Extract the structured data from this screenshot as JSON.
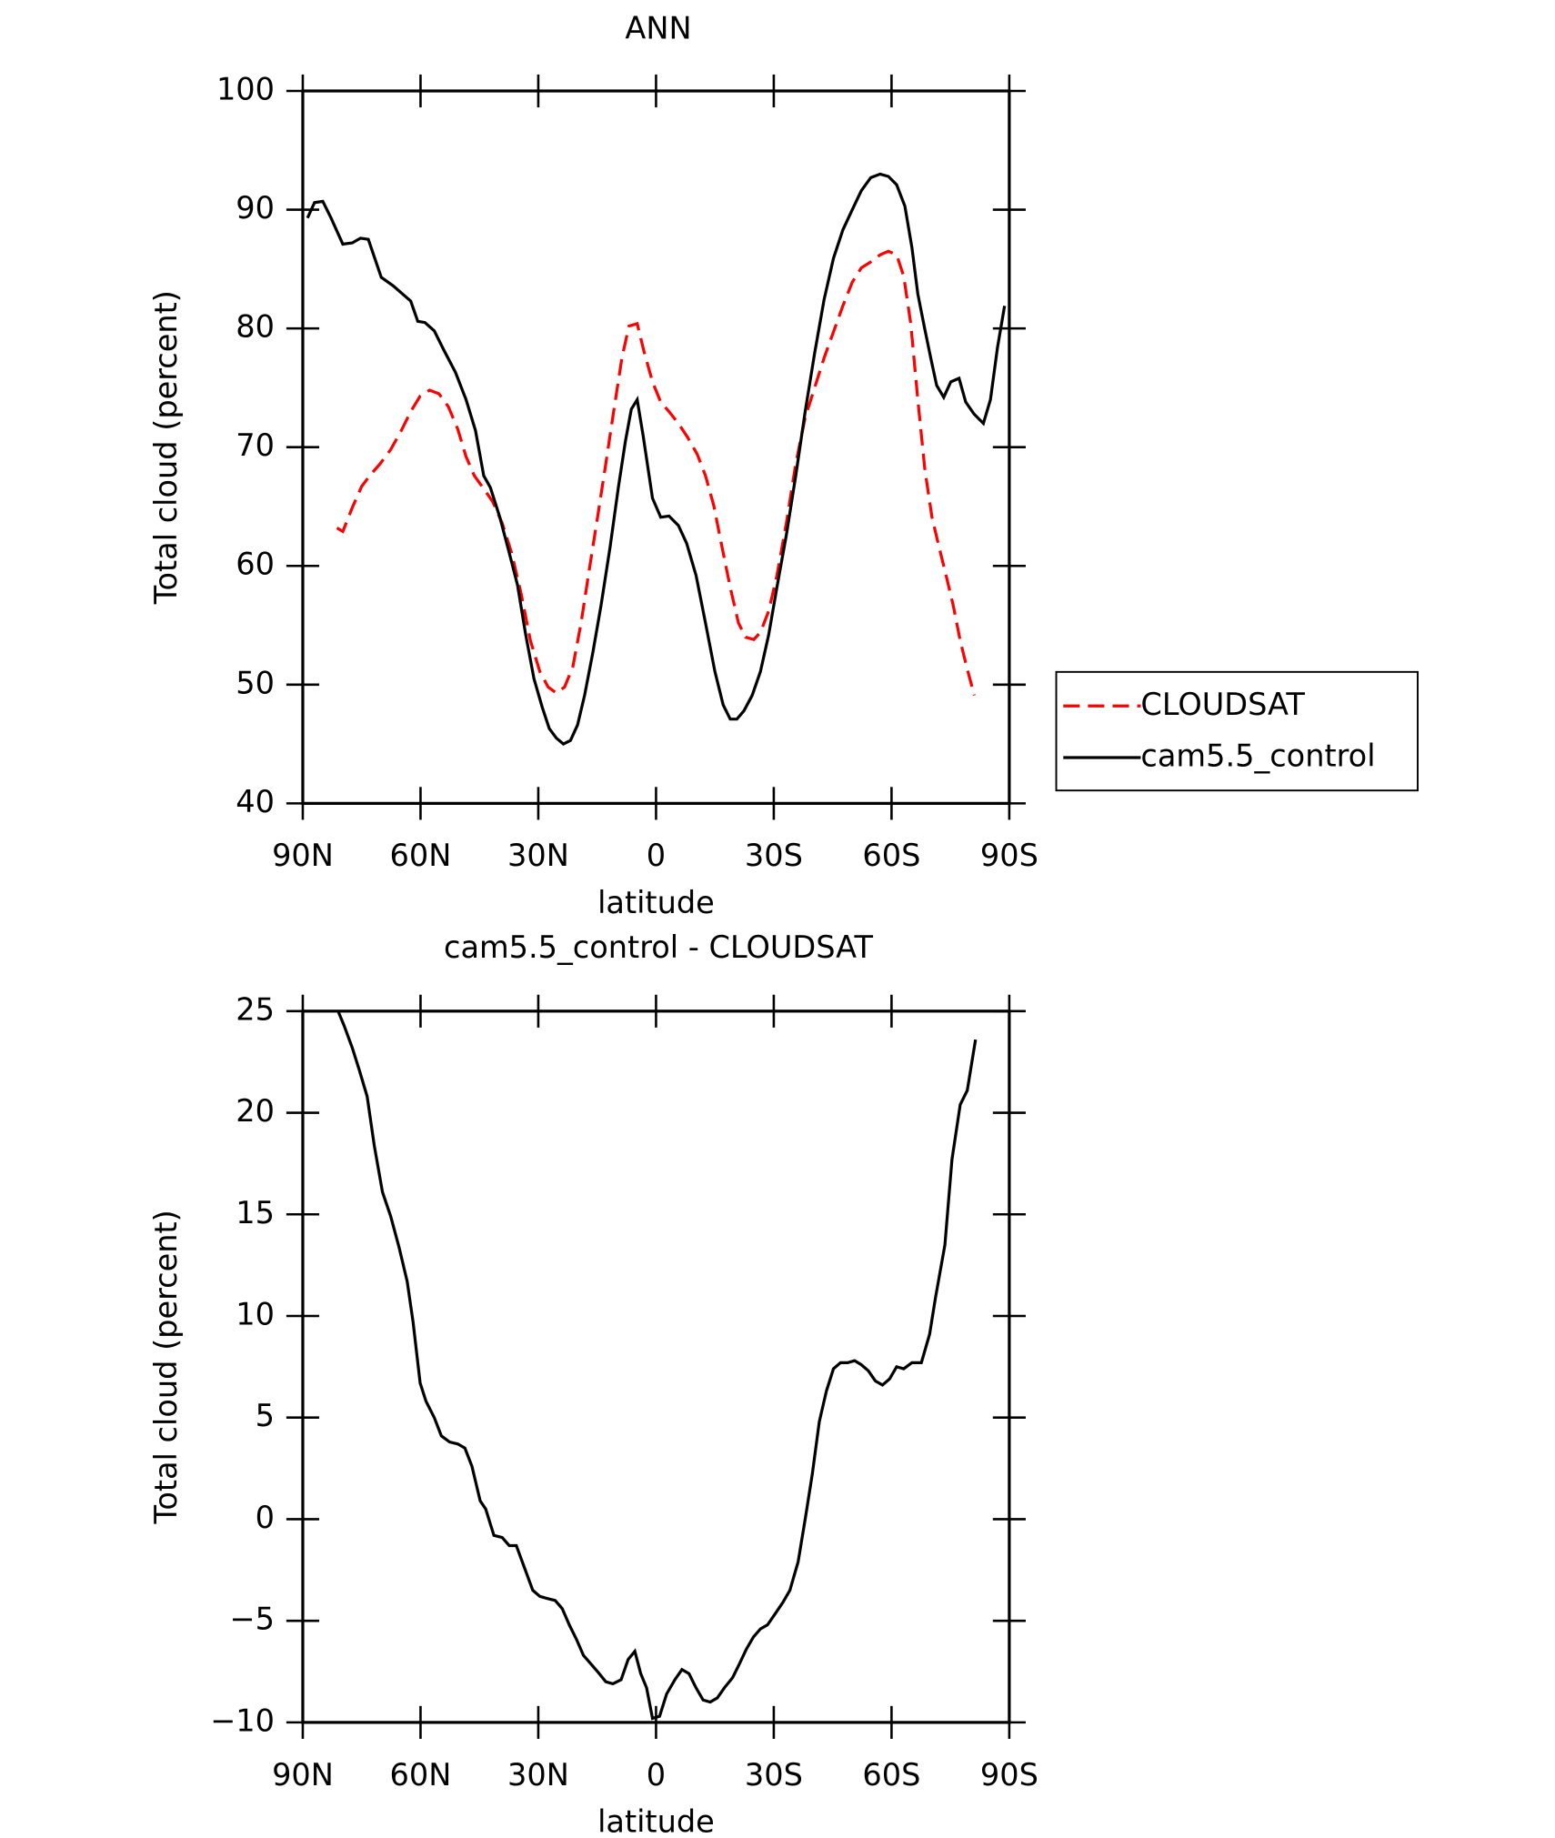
{
  "chart_data": [
    {
      "type": "line",
      "title": "ANN",
      "x_label": "latitude",
      "y_label": "Total cloud (percent)",
      "xlim": [
        90,
        -90
      ],
      "ylim": [
        40,
        100
      ],
      "xticks": [
        {
          "value": 90,
          "label": "90N"
        },
        {
          "value": 60,
          "label": "60N"
        },
        {
          "value": 30,
          "label": "30N"
        },
        0,
        {
          "value": -30,
          "label": "30S"
        },
        {
          "value": -60,
          "label": "60S"
        },
        {
          "value": -90,
          "label": "90S"
        }
      ],
      "yticks": [
        40,
        50,
        60,
        70,
        80,
        90,
        100
      ],
      "legend": "outside right",
      "series": [
        {
          "name": "CLOUDSAT",
          "color": "#ff0000",
          "linestyle": "dashed",
          "x": [
            81.3,
            79.8,
            77.4,
            75.0,
            72.7,
            70.3,
            67.6,
            64.9,
            62.5,
            60.1,
            57.7,
            55.3,
            52.9,
            50.5,
            48.4,
            46.3,
            43.9,
            41.6,
            39.2,
            36.8,
            34.4,
            32.0,
            29.6,
            27.5,
            25.4,
            23.3,
            21.2,
            19.1,
            17.0,
            14.9,
            12.8,
            10.8,
            8.7,
            6.9,
            4.8,
            3.1,
            0.9,
            -1.2,
            -3.3,
            -5.7,
            -8.1,
            -10.5,
            -12.6,
            -14.7,
            -16.8,
            -18.9,
            -21.0,
            -22.8,
            -24.9,
            -26.6,
            -28.7,
            -30.8,
            -33.2,
            -35.6,
            -38.0,
            -40.4,
            -42.8,
            -45.2,
            -47.6,
            -50.0,
            -52.3,
            -54.7,
            -57.1,
            -59.2,
            -61.3,
            -63.1,
            -64.9,
            -66.7,
            -68.5,
            -70.3,
            -72.1,
            -73.9,
            -75.7,
            -77.5,
            -79.3,
            -81.1
          ],
          "values": [
            63.2,
            62.9,
            64.9,
            66.7,
            67.7,
            68.6,
            69.8,
            71.4,
            73.0,
            74.3,
            74.8,
            74.5,
            73.4,
            71.5,
            69.2,
            67.6,
            66.5,
            65.4,
            63.6,
            61.1,
            57.7,
            53.7,
            51.1,
            49.8,
            49.3,
            49.8,
            51.5,
            55.2,
            59.7,
            64.1,
            68.6,
            73.0,
            77.5,
            80.2,
            80.4,
            78.1,
            75.5,
            73.8,
            73.0,
            72.0,
            70.8,
            69.4,
            67.6,
            65.1,
            61.6,
            58.2,
            55.2,
            54.0,
            53.8,
            54.4,
            56.2,
            59.2,
            63.6,
            68.6,
            72.5,
            75.0,
            77.5,
            79.7,
            81.9,
            83.9,
            85.1,
            85.6,
            86.2,
            86.5,
            86.2,
            84.4,
            80.4,
            74.0,
            68.1,
            64.1,
            61.6,
            59.2,
            56.7,
            53.7,
            51.3,
            49.1
          ]
        },
        {
          "name": "cam5.5_control",
          "color": "#000000",
          "linestyle": "solid",
          "x": [
            88.8,
            87.0,
            84.9,
            82.8,
            79.8,
            77.4,
            75.3,
            73.3,
            70.0,
            67.0,
            62.5,
            60.7,
            58.9,
            56.5,
            54.1,
            51.1,
            48.4,
            46.0,
            43.9,
            42.2,
            39.8,
            37.4,
            35.3,
            33.2,
            31.1,
            29.0,
            27.2,
            25.4,
            23.6,
            21.8,
            20.0,
            18.2,
            16.1,
            14.0,
            11.7,
            9.6,
            7.8,
            6.3,
            4.8,
            3.3,
            0.9,
            -1.2,
            -3.3,
            -5.7,
            -7.8,
            -10.2,
            -12.6,
            -15.0,
            -17.1,
            -18.9,
            -20.6,
            -22.4,
            -24.5,
            -26.6,
            -28.7,
            -30.8,
            -33.2,
            -35.6,
            -38.0,
            -40.4,
            -42.8,
            -45.2,
            -47.6,
            -50.0,
            -52.3,
            -54.7,
            -57.1,
            -59.2,
            -61.3,
            -63.4,
            -65.2,
            -66.7,
            -68.5,
            -70.0,
            -71.5,
            -73.3,
            -75.1,
            -77.2,
            -78.9,
            -81.0,
            -83.4,
            -85.2,
            -87.0,
            -88.8
          ],
          "values": [
            89.3,
            90.6,
            90.7,
            89.3,
            87.1,
            87.2,
            87.6,
            87.5,
            84.3,
            83.6,
            82.3,
            80.6,
            80.5,
            79.8,
            78.2,
            76.3,
            74.0,
            71.4,
            67.6,
            66.6,
            64.1,
            61.1,
            58.4,
            54.2,
            50.5,
            48.1,
            46.3,
            45.5,
            45.0,
            45.3,
            46.6,
            49.1,
            52.7,
            56.7,
            61.6,
            66.6,
            70.5,
            73.2,
            74.0,
            71.0,
            65.7,
            64.1,
            64.2,
            63.4,
            61.9,
            59.2,
            55.2,
            51.1,
            48.3,
            47.1,
            47.1,
            47.8,
            49.1,
            51.1,
            54.2,
            58.2,
            62.6,
            67.6,
            73.0,
            77.9,
            82.4,
            85.9,
            88.3,
            90.0,
            91.6,
            92.7,
            93.0,
            92.8,
            92.1,
            90.3,
            86.8,
            82.9,
            79.9,
            77.5,
            75.2,
            74.2,
            75.5,
            75.8,
            73.8,
            72.8,
            72.0,
            74.0,
            78.4,
            81.9
          ]
        }
      ]
    },
    {
      "type": "line",
      "title": "cam5.5_control - CLOUDSAT",
      "x_label": "latitude",
      "y_label": "Total cloud (percent)",
      "xlim": [
        90,
        -90
      ],
      "ylim": [
        -10,
        25
      ],
      "xticks": [
        {
          "value": 90,
          "label": "90N"
        },
        {
          "value": 60,
          "label": "60N"
        },
        {
          "value": 30,
          "label": "30N"
        },
        0,
        {
          "value": -30,
          "label": "30S"
        },
        {
          "value": -60,
          "label": "60S"
        },
        {
          "value": -90,
          "label": "90S"
        }
      ],
      "yticks": [
        {
          "value": -10,
          "label": "−10"
        },
        {
          "value": -5,
          "label": "−5"
        },
        0,
        5,
        10,
        15,
        20,
        25
      ],
      "series": [
        {
          "color": "#000000",
          "linestyle": "solid",
          "x": [
            81.0,
            79.5,
            77.4,
            75.6,
            73.6,
            71.8,
            69.7,
            67.6,
            65.5,
            63.4,
            61.9,
            60.1,
            58.6,
            56.5,
            54.7,
            52.6,
            50.5,
            48.7,
            46.9,
            44.8,
            43.4,
            41.3,
            39.2,
            37.4,
            35.6,
            33.5,
            31.4,
            29.6,
            27.8,
            25.7,
            23.9,
            22.1,
            20.3,
            18.5,
            16.7,
            14.9,
            12.8,
            11.0,
            8.9,
            7.1,
            5.4,
            3.9,
            2.4,
            0.9,
            -0.9,
            -2.7,
            -4.8,
            -6.6,
            -8.4,
            -10.2,
            -12.0,
            -13.8,
            -15.6,
            -17.4,
            -19.5,
            -21.3,
            -23.0,
            -24.8,
            -26.6,
            -28.4,
            -30.2,
            -32.3,
            -34.1,
            -36.2,
            -38.0,
            -39.8,
            -41.6,
            -43.4,
            -45.2,
            -47.0,
            -48.8,
            -50.6,
            -52.3,
            -54.1,
            -55.9,
            -57.7,
            -59.5,
            -61.3,
            -63.1,
            -65.2,
            -67.6,
            -69.7,
            -71.2,
            -73.6,
            -75.4,
            -77.5,
            -79.3,
            -81.4
          ],
          "values": [
            25.0,
            24.3,
            23.2,
            22.1,
            20.8,
            18.4,
            16.1,
            14.9,
            13.4,
            11.7,
            9.7,
            6.7,
            5.8,
            5.0,
            4.1,
            3.8,
            3.7,
            3.5,
            2.6,
            0.9,
            0.5,
            -0.8,
            -0.9,
            -1.3,
            -1.3,
            -2.4,
            -3.5,
            -3.8,
            -3.9,
            -4.0,
            -4.4,
            -5.2,
            -5.9,
            -6.7,
            -7.1,
            -7.5,
            -8.0,
            -8.1,
            -7.9,
            -6.9,
            -6.5,
            -7.6,
            -8.3,
            -9.8,
            -9.7,
            -8.6,
            -7.9,
            -7.4,
            -7.6,
            -8.3,
            -8.9,
            -9.0,
            -8.8,
            -8.3,
            -7.8,
            -7.1,
            -6.4,
            -5.8,
            -5.4,
            -5.2,
            -4.7,
            -4.1,
            -3.5,
            -2.1,
            0.0,
            2.2,
            4.8,
            6.3,
            7.4,
            7.7,
            7.7,
            7.8,
            7.6,
            7.3,
            6.8,
            6.6,
            6.9,
            7.5,
            7.4,
            7.7,
            7.7,
            9.1,
            10.9,
            13.5,
            17.7,
            20.4,
            21.1,
            23.6
          ]
        }
      ]
    }
  ]
}
